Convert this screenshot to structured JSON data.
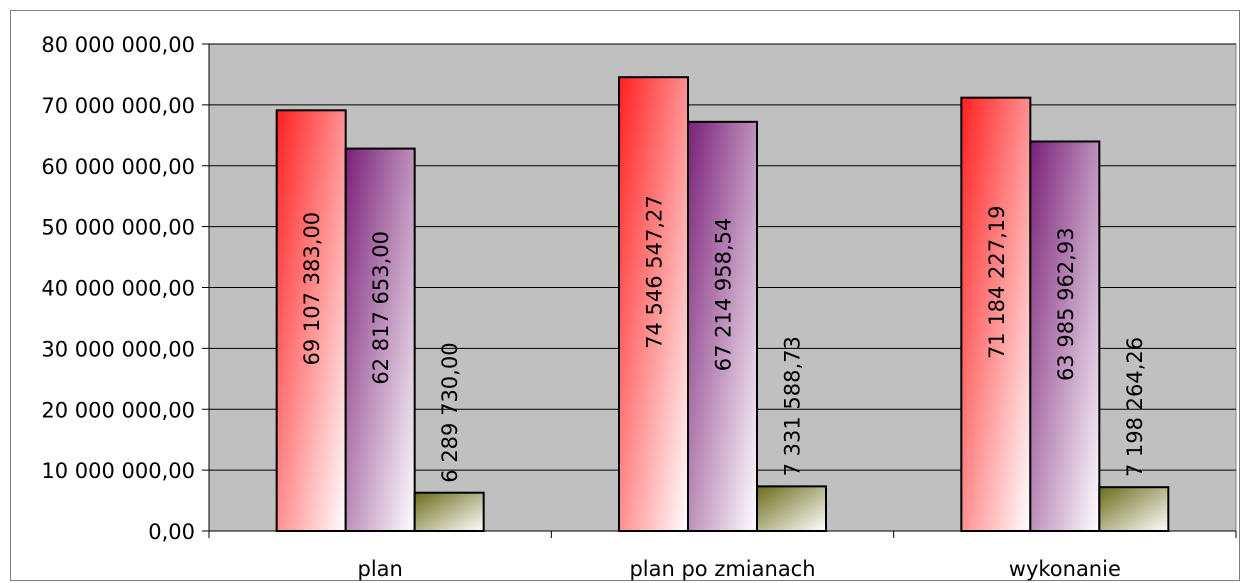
{
  "chart_data": {
    "type": "bar",
    "categories": [
      "plan",
      "plan po zmianach",
      "wykonanie"
    ],
    "series": [
      {
        "color_top": "#ff2020",
        "color_bottom": "#ffffff",
        "values": [
          69107383.0,
          74546547.27,
          71184227.19
        ],
        "labels": [
          "69 107 383,00",
          "74 546 547,27",
          "71 184 227,19"
        ]
      },
      {
        "color_top": "#7a2078",
        "color_bottom": "#ffffff",
        "values": [
          62817653.0,
          67214958.54,
          63985962.93
        ],
        "labels": [
          "62 817 653,00",
          "67 214 958,54",
          "63 985 962,93"
        ]
      },
      {
        "color_top": "#6b6b1a",
        "color_bottom": "#ffffff",
        "values": [
          6289730.0,
          7331588.73,
          7198264.26
        ],
        "labels": [
          "6 289 730,00",
          "7 331 588,73",
          "7 198 264,26"
        ]
      }
    ],
    "ylim": [
      0,
      80000000
    ],
    "yticks": [
      0,
      10000000,
      20000000,
      30000000,
      40000000,
      50000000,
      60000000,
      70000000,
      80000000
    ],
    "ytick_labels": [
      "0,00",
      "10 000 000,00",
      "20 000 000,00",
      "30 000 000,00",
      "40 000 000,00",
      "50 000 000,00",
      "60 000 000,00",
      "70 000 000,00",
      "80 000 000,00"
    ],
    "grid": true,
    "legend": "none",
    "plot_background": "#c0c0c0"
  }
}
